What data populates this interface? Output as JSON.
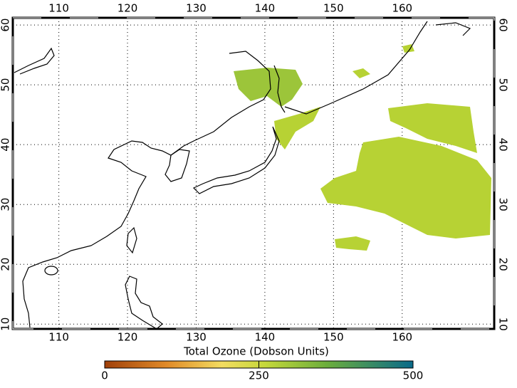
{
  "map": {
    "lonlim": [
      103.3,
      173.4
    ],
    "latlim": [
      9.2,
      61.2
    ],
    "lonticks": [
      110,
      120,
      130,
      140,
      150,
      160
    ],
    "latticks": [
      10,
      20,
      30,
      40,
      50,
      60
    ]
  },
  "colorbar": {
    "title": "Total Ozone (Dobson Units)",
    "lim": [
      0,
      500
    ],
    "ticks": [
      0,
      250,
      500
    ]
  }
}
